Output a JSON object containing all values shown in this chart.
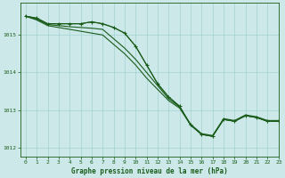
{
  "background_color": "#cce8e8",
  "plot_bg_color": "#cce8e8",
  "grid_color": "#99cccc",
  "line_color": "#1a5c1a",
  "title": "Graphe pression niveau de la mer (hPa)",
  "ylim": [
    1011.75,
    1015.85
  ],
  "xlim": [
    -0.5,
    23
  ],
  "yticks": [
    1012,
    1013,
    1014,
    1015
  ],
  "xticks": [
    0,
    1,
    2,
    3,
    4,
    5,
    6,
    7,
    8,
    9,
    10,
    11,
    12,
    13,
    14,
    15,
    16,
    17,
    18,
    19,
    20,
    21,
    22,
    23
  ],
  "s1_x": [
    0,
    1,
    2,
    3,
    4,
    5,
    6,
    7,
    8,
    9,
    10,
    11,
    12,
    13,
    14,
    15,
    16,
    17,
    18,
    19,
    20,
    21,
    22,
    23
  ],
  "s1_y": [
    1015.5,
    1015.45,
    1015.3,
    1015.3,
    1015.3,
    1015.3,
    1015.35,
    1015.3,
    1015.2,
    1015.05,
    1014.7,
    1014.2,
    1013.7,
    1013.35,
    1013.1,
    1012.6,
    1012.35,
    1012.3,
    1012.75,
    1012.7,
    1012.85,
    1012.8,
    1012.7,
    1012.7
  ],
  "s2_x": [
    0,
    1,
    2,
    3,
    4,
    5,
    6,
    7,
    8,
    9,
    10,
    11,
    12,
    13,
    14,
    15,
    16,
    17,
    18,
    19,
    20,
    21,
    22,
    23
  ],
  "s2_y": [
    1015.5,
    1015.4,
    1015.25,
    1015.2,
    1015.15,
    1015.1,
    1015.05,
    1015.0,
    1014.75,
    1014.5,
    1014.2,
    1013.85,
    1013.55,
    1013.25,
    1013.05,
    1012.6,
    1012.35,
    1012.3,
    1012.75,
    1012.7,
    1012.85,
    1012.8,
    1012.7,
    1012.7
  ],
  "s3_x": [
    0,
    1,
    2,
    3,
    4,
    5,
    6,
    7,
    8,
    9,
    10,
    11,
    12,
    13,
    14,
    15,
    16,
    17,
    18,
    19,
    20,
    21,
    22,
    23
  ],
  "s3_y": [
    1015.5,
    1015.42,
    1015.28,
    1015.25,
    1015.22,
    1015.2,
    1015.18,
    1015.15,
    1014.9,
    1014.65,
    1014.35,
    1014.0,
    1013.65,
    1013.3,
    1013.08,
    1012.62,
    1012.37,
    1012.32,
    1012.77,
    1012.72,
    1012.87,
    1012.82,
    1012.72,
    1012.72
  ],
  "sm_x": [
    0,
    1,
    2,
    3,
    4,
    5,
    6,
    7,
    8,
    9,
    10,
    11,
    12,
    13,
    14,
    15,
    16,
    17,
    18,
    19,
    20,
    21,
    22,
    23
  ],
  "sm_y": [
    1015.5,
    1015.45,
    1015.3,
    1015.3,
    1015.3,
    1015.3,
    1015.35,
    1015.3,
    1015.2,
    1015.05,
    1014.7,
    1014.2,
    1013.7,
    1013.35,
    1013.1,
    1012.6,
    1012.35,
    1012.3,
    1012.75,
    1012.7,
    1012.85,
    1012.8,
    1012.7,
    1012.7
  ]
}
